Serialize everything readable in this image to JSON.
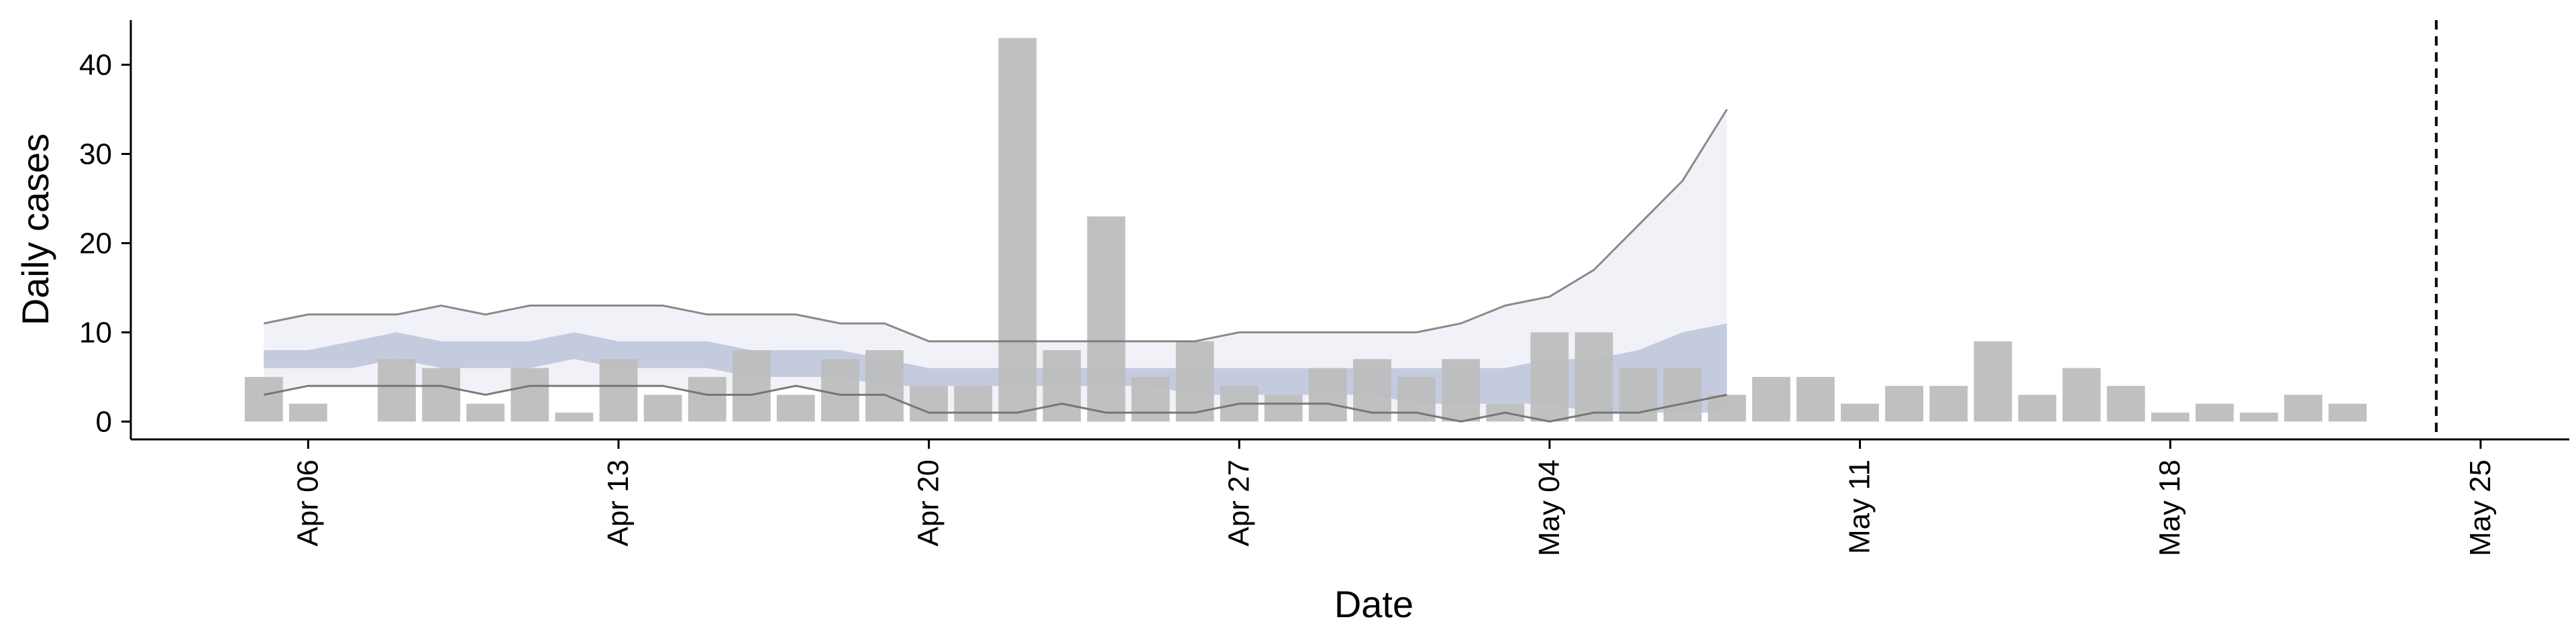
{
  "chart_data": {
    "type": "bar",
    "xlabel": "Date",
    "ylabel": "Daily cases",
    "x_range": [
      "2020-04-02",
      "2020-05-27"
    ],
    "ylim": [
      -2,
      45
    ],
    "yticks": [
      0,
      10,
      20,
      30,
      40
    ],
    "xticks": [
      {
        "date": "2020-04-06",
        "label": "Apr 06"
      },
      {
        "date": "2020-04-13",
        "label": "Apr 13"
      },
      {
        "date": "2020-04-20",
        "label": "Apr 20"
      },
      {
        "date": "2020-04-27",
        "label": "Apr 27"
      },
      {
        "date": "2020-05-04",
        "label": "May 04"
      },
      {
        "date": "2020-05-11",
        "label": "May 11"
      },
      {
        "date": "2020-05-18",
        "label": "May 18"
      },
      {
        "date": "2020-05-25",
        "label": "May 25"
      }
    ],
    "grid": false,
    "vline": {
      "date": "2020-05-24",
      "style": "dashed",
      "color": "#000000"
    },
    "bars": {
      "color": "#bdbdbd",
      "start_date": "2020-04-05",
      "values": [
        5,
        2,
        0,
        7,
        6,
        2,
        6,
        1,
        7,
        3,
        5,
        8,
        3,
        7,
        8,
        4,
        4,
        43,
        8,
        23,
        5,
        9,
        4,
        3,
        6,
        7,
        5,
        7,
        2,
        10,
        10,
        6,
        6,
        3,
        5,
        5,
        2,
        4,
        4,
        9,
        3,
        6,
        4,
        1,
        2,
        1,
        3,
        2
      ]
    },
    "band_series": [
      {
        "start_date": "2020-04-05",
        "upper": [
          11,
          12,
          12,
          12,
          13,
          12,
          13,
          13,
          13,
          13,
          12,
          12,
          12,
          11,
          11,
          9,
          9,
          9,
          9,
          9,
          9,
          9,
          10,
          10,
          10,
          10,
          10,
          11,
          13,
          14,
          17,
          22,
          27,
          35
        ],
        "lower": [
          3,
          4,
          4,
          4,
          4,
          3,
          4,
          4,
          4,
          4,
          3,
          3,
          4,
          3,
          3,
          1,
          1,
          1,
          2,
          1,
          1,
          1,
          2,
          2,
          2,
          1,
          1,
          0,
          1,
          0,
          1,
          1,
          2,
          3
        ],
        "outer_fill": "#e6e8f2",
        "line_color": "#6e6e6e"
      },
      {
        "start_date": "2020-04-05",
        "upper": [
          8,
          8,
          9,
          10,
          9,
          9,
          9,
          10,
          9,
          9,
          9,
          8,
          8,
          8,
          7,
          6,
          6,
          6,
          6,
          6,
          6,
          6,
          6,
          6,
          6,
          6,
          6,
          6,
          6,
          7,
          7,
          8,
          10,
          11
        ],
        "lower": [
          6,
          6,
          6,
          7,
          6,
          6,
          6,
          7,
          6,
          6,
          6,
          5,
          5,
          5,
          4,
          4,
          4,
          4,
          4,
          4,
          4,
          3,
          3,
          3,
          3,
          3,
          2,
          2,
          2,
          2,
          1,
          1,
          1,
          1
        ],
        "inner_fill": "#b6bdd6"
      }
    ]
  }
}
